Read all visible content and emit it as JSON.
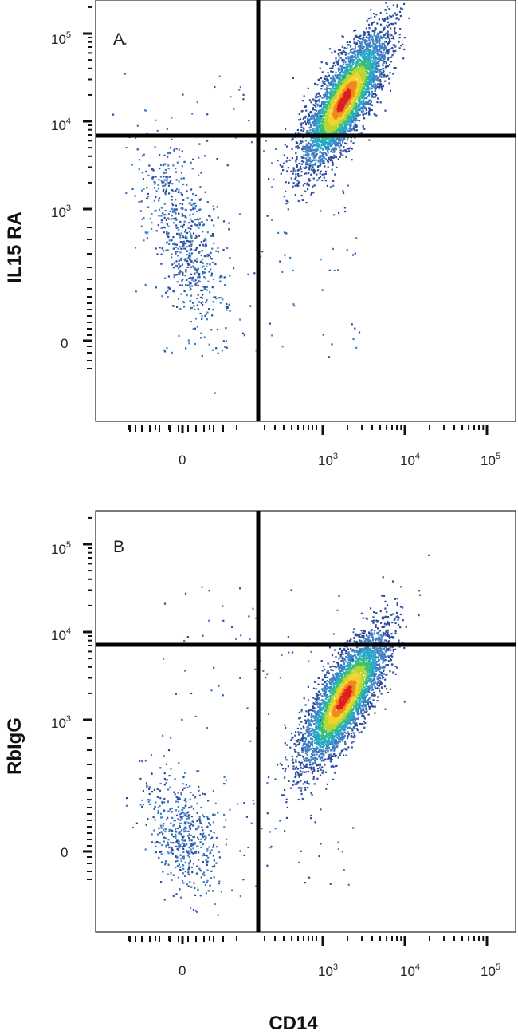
{
  "chart_data": [
    {
      "type": "scatter",
      "panel_label": "A",
      "xlabel": "CD14",
      "ylabel": "IL15 RA",
      "x_scale": "biexponential",
      "y_scale": "biexponential",
      "x_tick_labels": [
        "0",
        "10^3",
        "10^4",
        "10^5"
      ],
      "y_tick_labels": [
        "10^5",
        "10^4",
        "10^3",
        "0"
      ],
      "gate": {
        "x": 300,
        "y": 6000
      },
      "series": [
        {
          "population": "CD14-negative",
          "center": {
            "x": 0,
            "y": 800
          },
          "count": 650
        },
        {
          "population": "CD14-positive",
          "center": {
            "x": 1800,
            "y": 18000
          },
          "count": 4300
        }
      ],
      "density_colors": [
        "#2b4c9c",
        "#3e7fc4",
        "#27a8c8",
        "#39bf7a",
        "#b8d633",
        "#f4d22a",
        "#f08a1e",
        "#e01d1d"
      ]
    },
    {
      "type": "scatter",
      "panel_label": "B",
      "xlabel": "CD14",
      "ylabel": "RbIgG",
      "x_scale": "biexponential",
      "y_scale": "biexponential",
      "x_tick_labels": [
        "0",
        "10^3",
        "10^4",
        "10^5"
      ],
      "y_tick_labels": [
        "10^5",
        "10^4",
        "10^3",
        "0"
      ],
      "gate": {
        "x": 300,
        "y": 6000
      },
      "series": [
        {
          "population": "CD14-negative",
          "center": {
            "x": 0,
            "y": 150
          },
          "count": 500
        },
        {
          "population": "CD14-positive",
          "center": {
            "x": 1800,
            "y": 1800
          },
          "count": 4300
        }
      ],
      "density_colors": [
        "#2b4c9c",
        "#3e7fc4",
        "#27a8c8",
        "#39bf7a",
        "#b8d633",
        "#f4d22a",
        "#f08a1e",
        "#e01d1d"
      ]
    }
  ]
}
